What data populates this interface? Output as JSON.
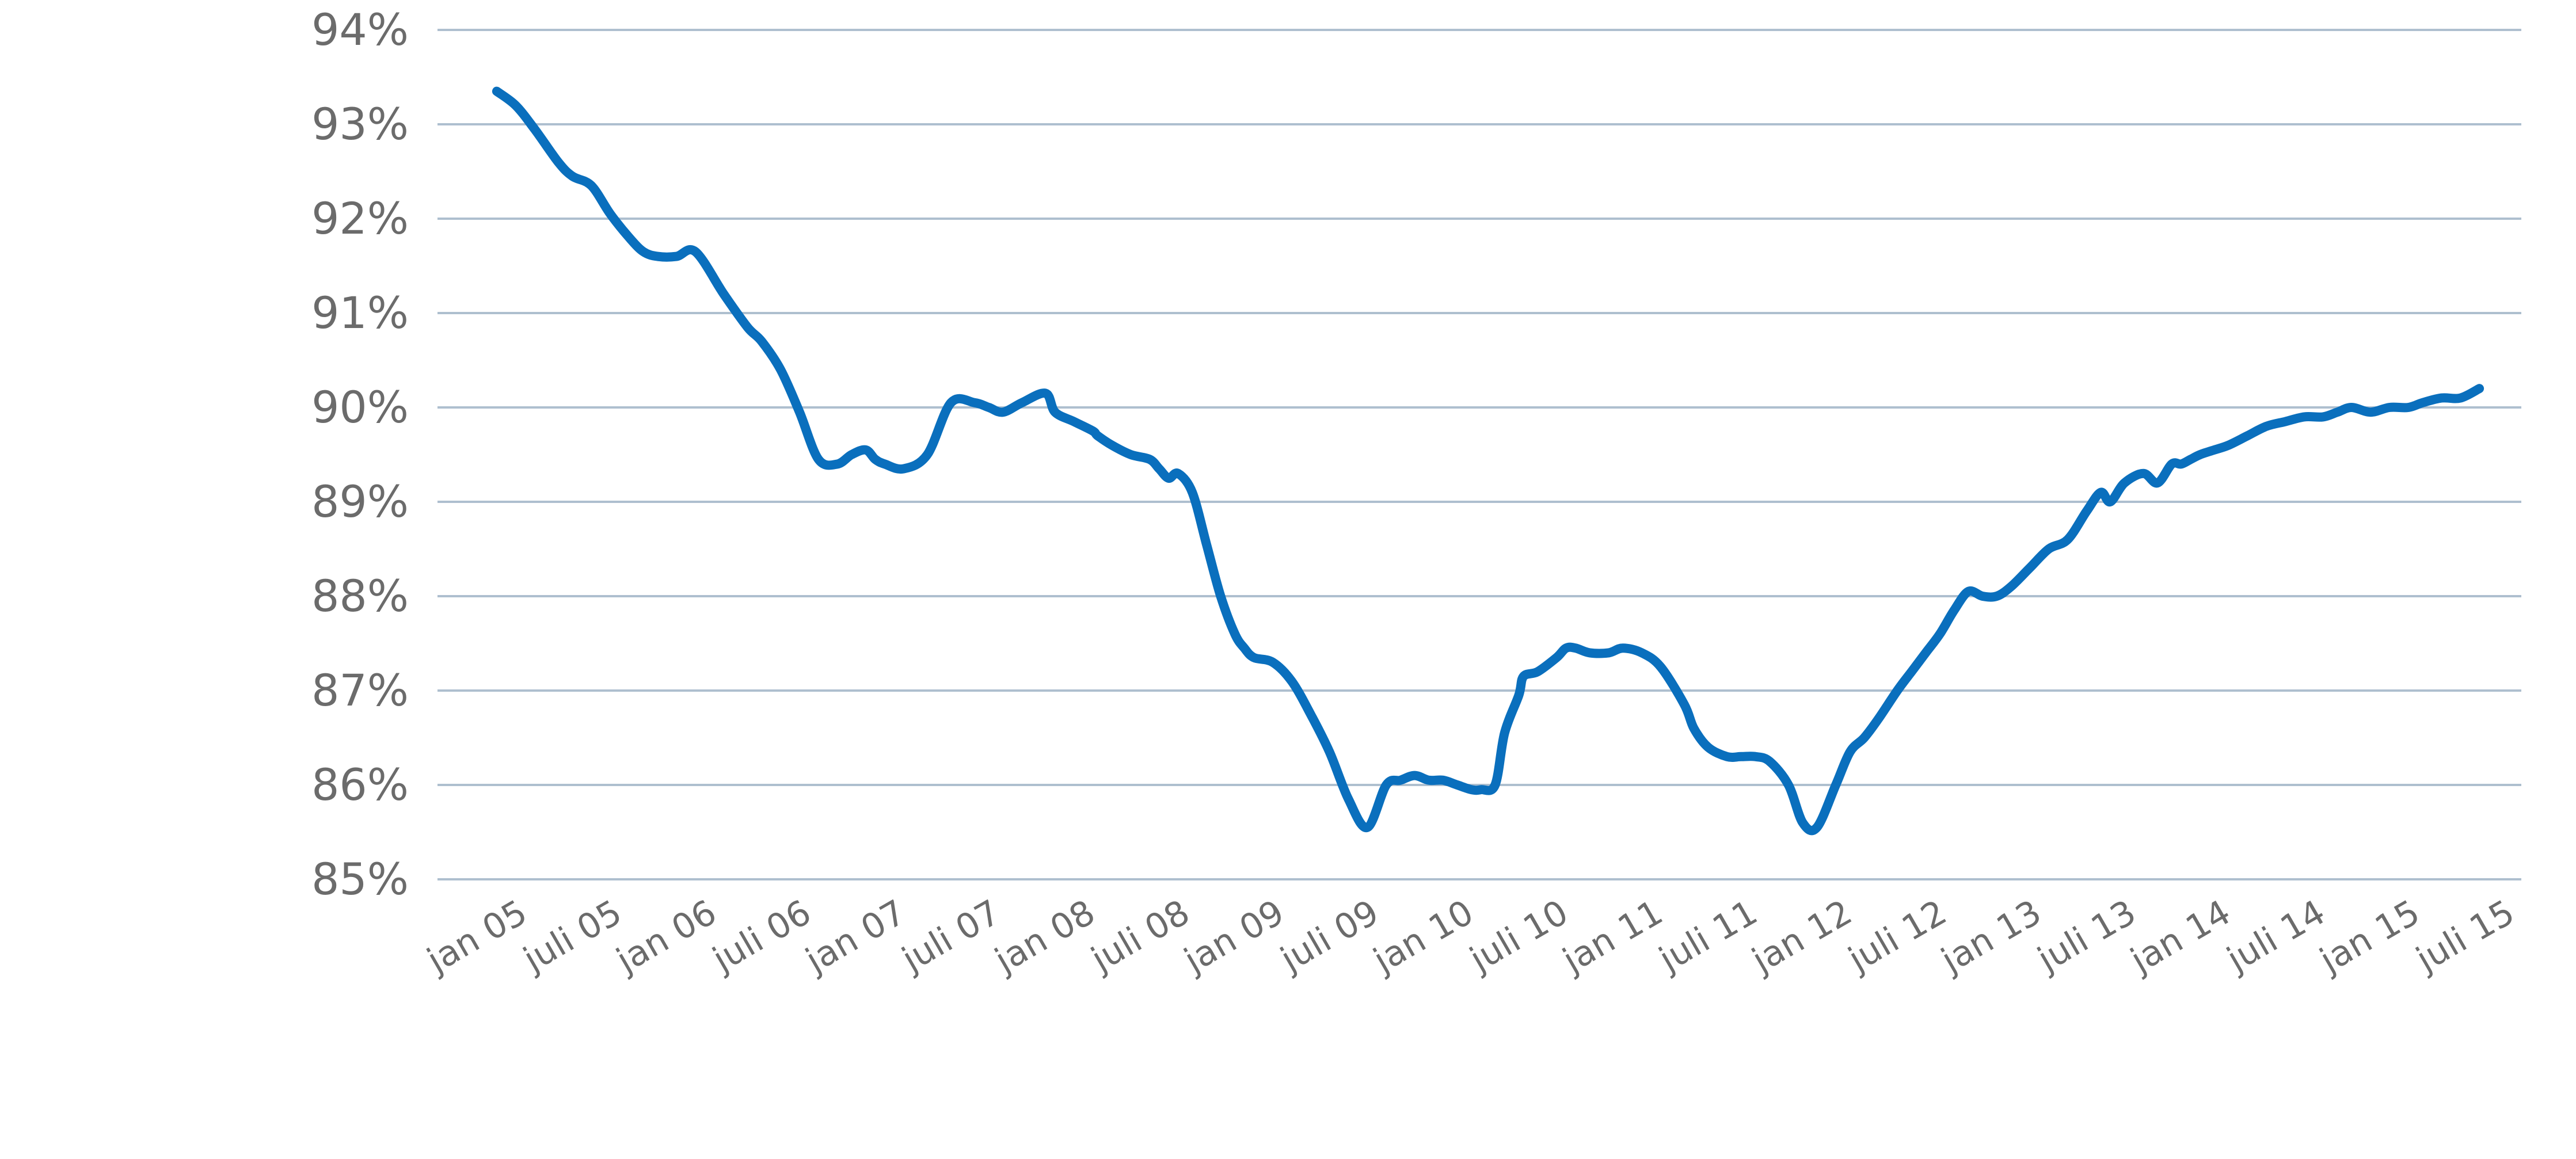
{
  "chart_data": {
    "type": "line",
    "title": "",
    "xlabel": "",
    "ylabel": "",
    "ylim": [
      85,
      94
    ],
    "yticks": [
      85,
      86,
      87,
      88,
      89,
      90,
      91,
      92,
      93,
      94
    ],
    "ytick_labels": [
      "85%",
      "86%",
      "87%",
      "88%",
      "89%",
      "90%",
      "91%",
      "92%",
      "93%",
      "94%"
    ],
    "xtick_labels": [
      "jan 05",
      "juli 05",
      "jan 06",
      "juli 06",
      "jan 07",
      "juli 07",
      "jan 08",
      "juli 08",
      "jan 09",
      "juli 09",
      "jan 10",
      "juli 10",
      "jan 11",
      "juli 11",
      "jan 12",
      "juli 12",
      "jan 13",
      "juli 13",
      "jan 14",
      "juli 14",
      "jan 15",
      "juli 15"
    ],
    "xlim": [
      0,
      21.5
    ],
    "grid": true,
    "legend": "none",
    "line_color": "#0a6fbd",
    "grid_color": "#aebfcf",
    "text_color": "#6b6b6b",
    "series": [
      {
        "x": [
          0.2,
          0.4,
          0.6,
          0.85,
          1.0,
          1.2,
          1.4,
          1.6,
          1.75,
          1.9,
          2.1,
          2.3,
          2.6,
          2.85,
          3.0,
          3.2,
          3.4,
          3.6,
          3.8,
          3.95,
          4.1,
          4.2,
          4.3,
          4.5,
          4.75,
          5.0,
          5.25,
          5.4,
          5.55,
          5.75,
          6.0,
          6.1,
          6.3,
          6.5,
          6.55,
          6.7,
          6.9,
          7.1,
          7.2,
          7.3,
          7.4,
          7.55,
          7.7,
          7.85,
          8.0,
          8.1,
          8.2,
          8.4,
          8.6,
          8.8,
          9.0,
          9.2,
          9.4,
          9.6,
          9.75,
          9.9,
          10.05,
          10.2,
          10.35,
          10.5,
          10.6,
          10.75,
          10.85,
          11.0,
          11.05,
          11.2,
          11.4,
          11.5,
          11.6,
          11.75,
          11.95,
          12.1,
          12.3,
          12.5,
          12.75,
          12.85,
          13.0,
          13.2,
          13.35,
          13.5,
          13.65,
          13.85,
          14.0,
          14.15,
          14.35,
          14.5,
          14.65,
          14.8,
          15.0,
          15.15,
          15.3,
          15.45,
          15.6,
          15.75,
          15.9,
          16.05,
          16.2,
          16.4,
          16.6,
          16.8,
          17.0,
          17.15,
          17.25,
          17.4,
          17.6,
          17.75,
          17.9,
          18.0,
          18.1,
          18.2,
          18.35,
          18.5,
          18.7,
          18.9,
          19.1,
          19.3,
          19.5,
          19.65,
          19.8,
          20.0,
          20.2,
          20.4,
          20.55,
          20.75,
          20.95,
          21.15
        ],
        "values": [
          93.35,
          93.2,
          92.95,
          92.6,
          92.45,
          92.35,
          92.05,
          91.8,
          91.65,
          91.6,
          91.6,
          91.65,
          91.2,
          90.85,
          90.7,
          90.4,
          89.95,
          89.45,
          89.4,
          89.5,
          89.55,
          89.45,
          89.4,
          89.35,
          89.5,
          90.05,
          90.05,
          90.0,
          89.95,
          90.05,
          90.15,
          89.95,
          89.85,
          89.75,
          89.7,
          89.6,
          89.5,
          89.45,
          89.35,
          89.25,
          89.3,
          89.1,
          88.55,
          88.0,
          87.6,
          87.45,
          87.35,
          87.3,
          87.1,
          86.75,
          86.35,
          85.85,
          85.55,
          86.0,
          86.05,
          86.1,
          86.05,
          86.05,
          86.0,
          85.95,
          85.95,
          86.0,
          86.55,
          86.95,
          87.15,
          87.2,
          87.35,
          87.45,
          87.45,
          87.4,
          87.4,
          87.45,
          87.4,
          87.25,
          86.85,
          86.6,
          86.4,
          86.3,
          86.3,
          86.3,
          86.25,
          86.0,
          85.6,
          85.55,
          86.0,
          86.35,
          86.5,
          86.7,
          87.0,
          87.2,
          87.4,
          87.6,
          87.85,
          88.05,
          88.0,
          88.0,
          88.1,
          88.3,
          88.5,
          88.6,
          88.9,
          89.1,
          89.0,
          89.2,
          89.3,
          89.2,
          89.4,
          89.4,
          89.45,
          89.5,
          89.55,
          89.6,
          89.7,
          89.8,
          89.85,
          89.9,
          89.9,
          89.95,
          90.0,
          89.95,
          90.0,
          90.0,
          90.05,
          90.1,
          90.1,
          90.2
        ]
      }
    ]
  }
}
